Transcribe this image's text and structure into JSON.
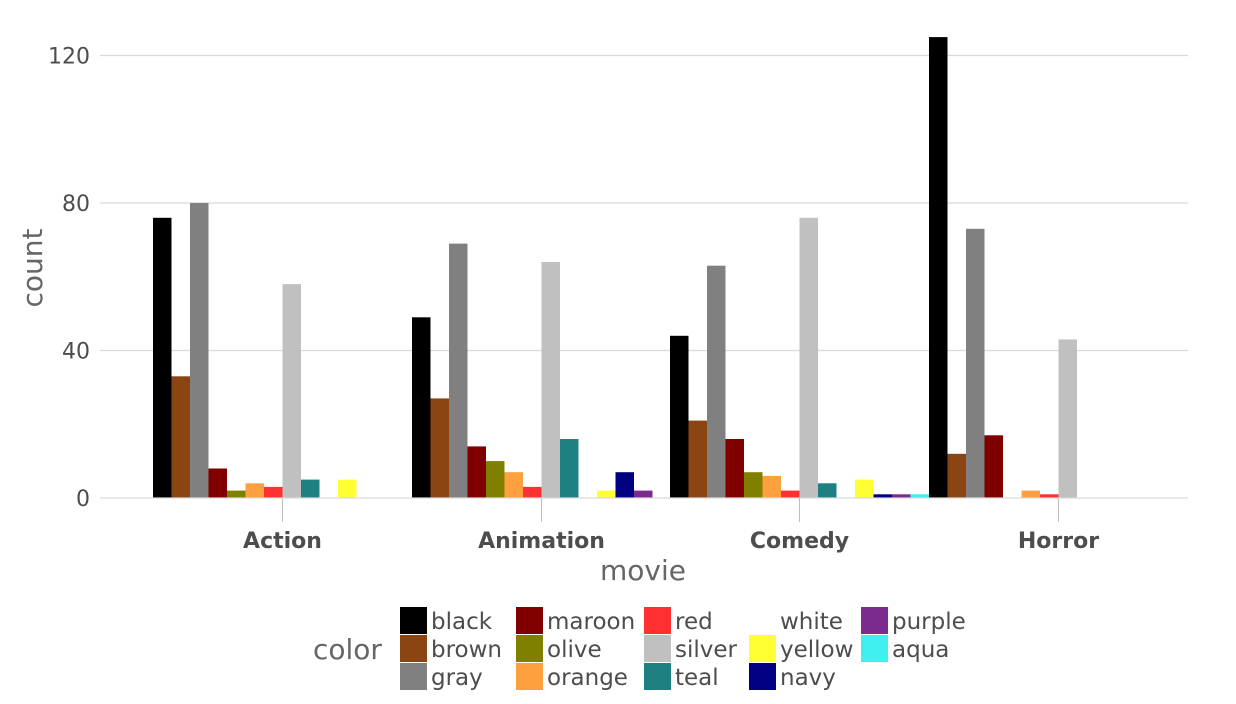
{
  "chart_data": {
    "type": "bar",
    "xlabel": "movie",
    "ylabel": "count",
    "ylim": [
      0,
      125
    ],
    "yticks": [
      0,
      40,
      80,
      120
    ],
    "grid": true,
    "categories": [
      "Action",
      "Animation",
      "Comedy",
      "Horror"
    ],
    "legend": {
      "title": "color",
      "placement": "bottom"
    },
    "series": [
      {
        "name": "black",
        "color": "#000000",
        "values": [
          76,
          49,
          44,
          125
        ]
      },
      {
        "name": "brown",
        "color": "#8B4513",
        "values": [
          33,
          27,
          21,
          12
        ]
      },
      {
        "name": "gray",
        "color": "#808080",
        "values": [
          80,
          69,
          63,
          73
        ]
      },
      {
        "name": "maroon",
        "color": "#800000",
        "values": [
          8,
          14,
          16,
          17
        ]
      },
      {
        "name": "olive",
        "color": "#808000",
        "values": [
          2,
          10,
          7,
          0
        ]
      },
      {
        "name": "orange",
        "color": "#FFA040",
        "values": [
          4,
          7,
          6,
          2
        ]
      },
      {
        "name": "red",
        "color": "#FF3030",
        "values": [
          3,
          3,
          2,
          1
        ]
      },
      {
        "name": "silver",
        "color": "#C0C0C0",
        "values": [
          58,
          64,
          76,
          43
        ]
      },
      {
        "name": "teal",
        "color": "#1E8080",
        "values": [
          5,
          16,
          4,
          0
        ]
      },
      {
        "name": "white",
        "color": "#FFFFFF",
        "values": [
          0,
          0,
          0,
          0
        ]
      },
      {
        "name": "yellow",
        "color": "#FFFF33",
        "values": [
          5,
          2,
          5,
          0
        ]
      },
      {
        "name": "navy",
        "color": "#000080",
        "values": [
          0,
          7,
          1,
          0
        ]
      },
      {
        "name": "purple",
        "color": "#7B2B8E",
        "values": [
          0,
          2,
          1,
          0
        ]
      },
      {
        "name": "aqua",
        "color": "#40F0F0",
        "values": [
          0,
          0,
          1,
          0
        ]
      }
    ]
  }
}
